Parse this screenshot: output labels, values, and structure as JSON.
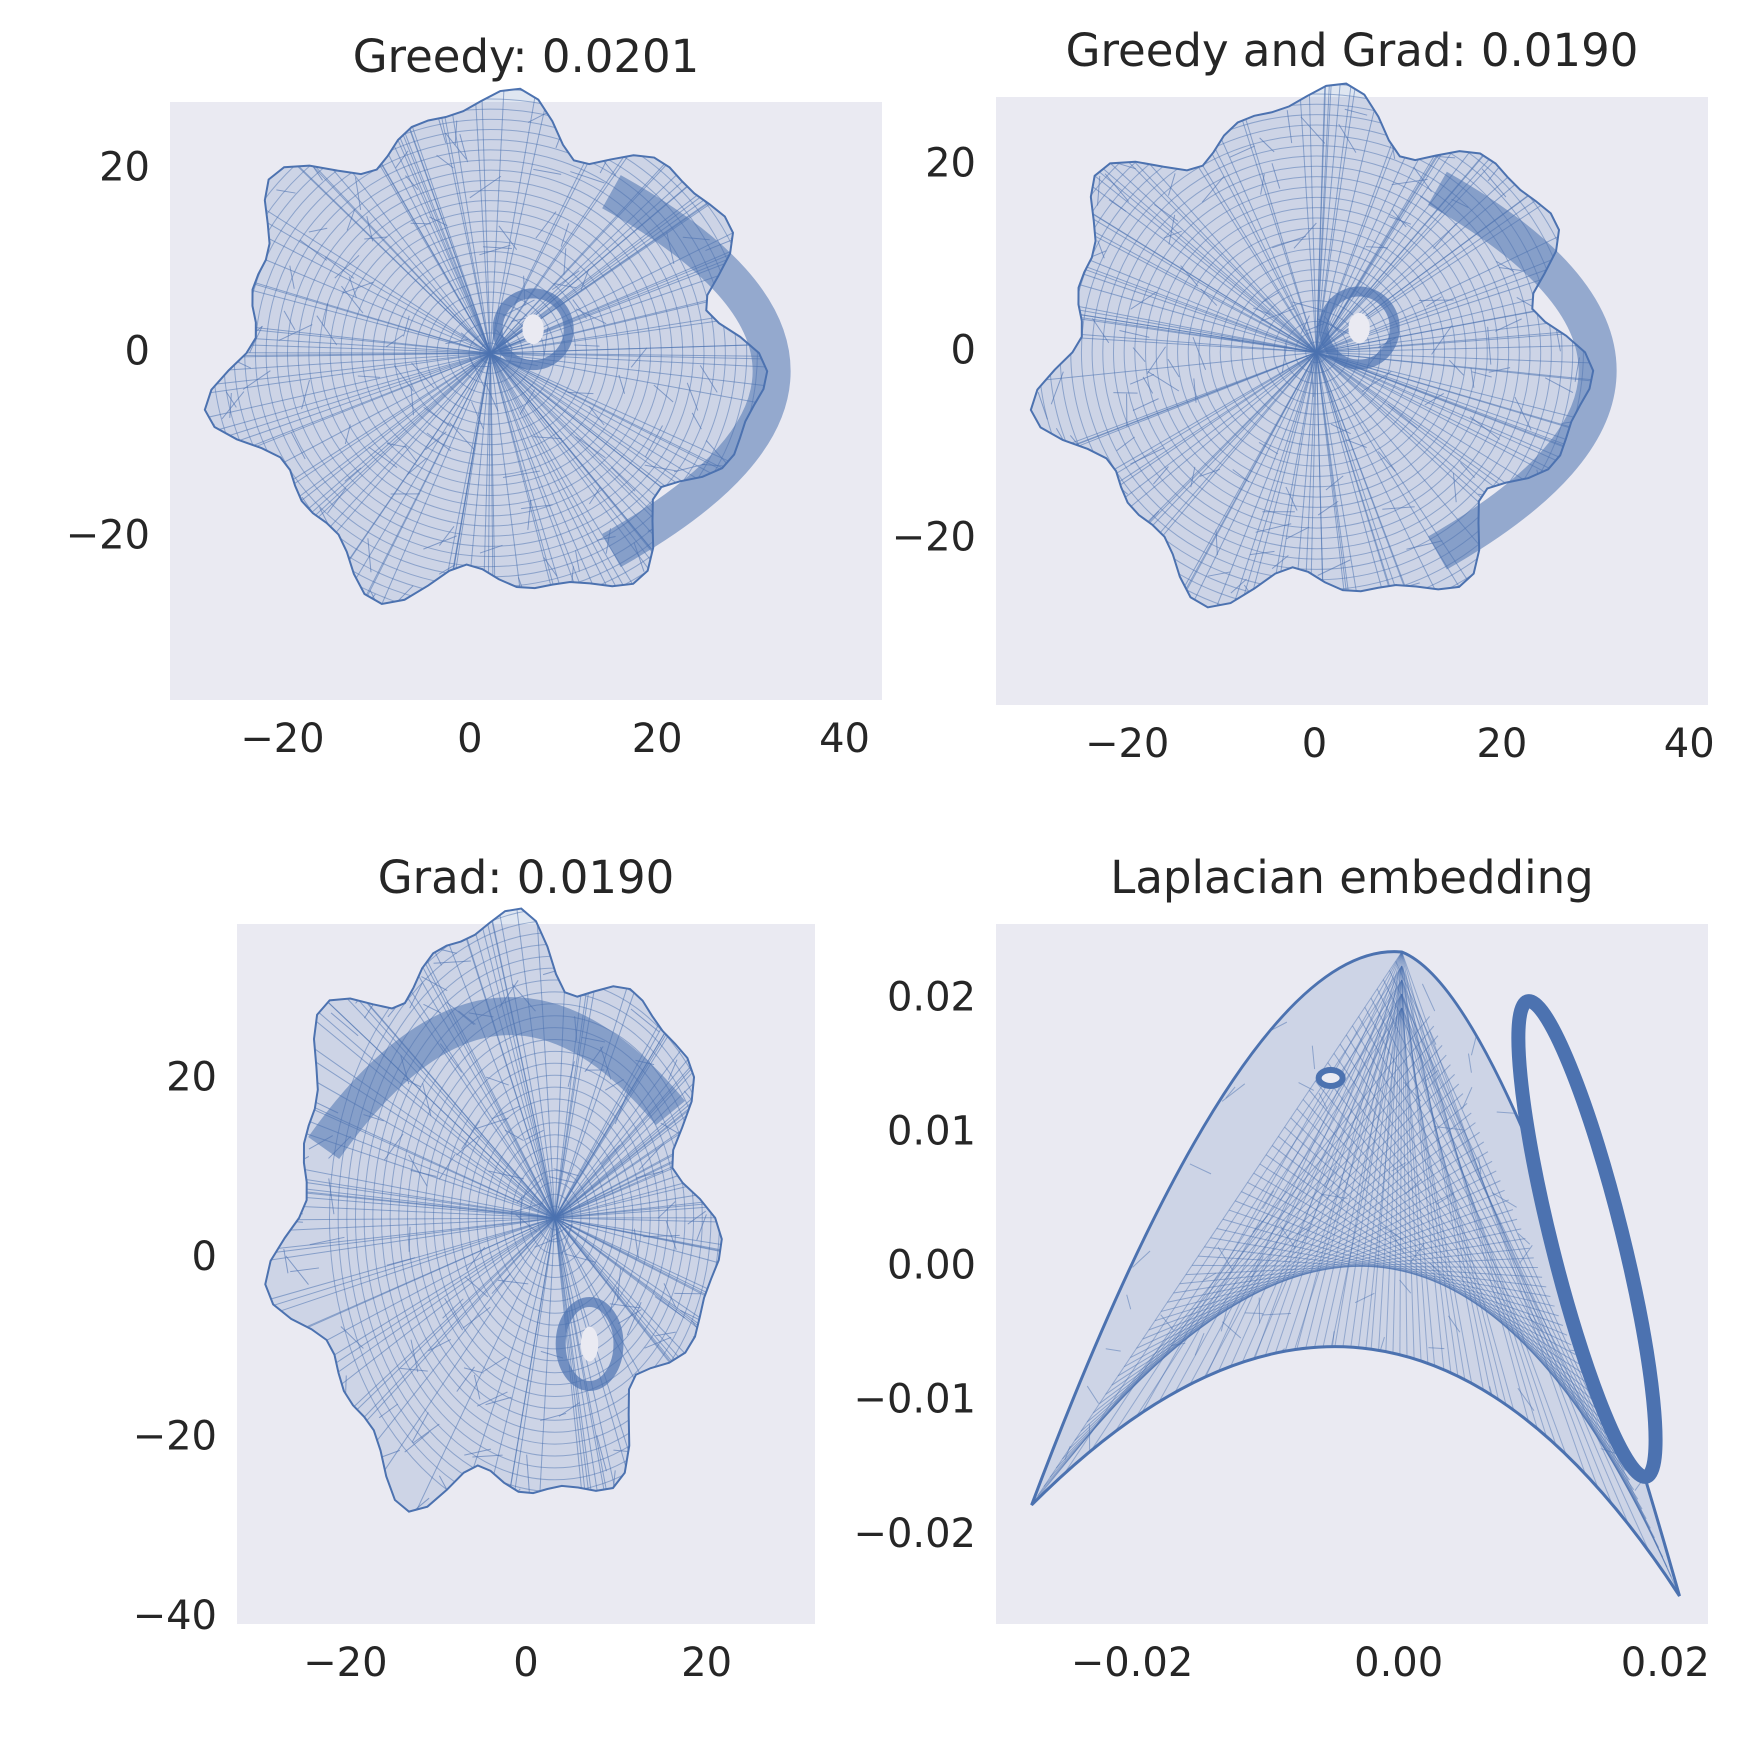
{
  "figure": {
    "background": "#ffffff",
    "panel_background": "#eaeaf2",
    "mesh_color": "#4c72b0"
  },
  "chart_data": [
    {
      "type": "mesh-embedding",
      "title": "Greedy: 0.0201",
      "xlim": [
        -32,
        44
      ],
      "ylim": [
        -38,
        27
      ],
      "xticks": [
        -20,
        0,
        20,
        40
      ],
      "xtick_labels": [
        "−20",
        "0",
        "20",
        "40"
      ],
      "yticks": [
        20,
        0,
        -20
      ],
      "ytick_labels": [
        "20",
        "0",
        "−20"
      ],
      "grid": false,
      "shape": "fan-with-arc",
      "mirrored": false
    },
    {
      "type": "mesh-embedding",
      "title": "Greedy and Grad: 0.0190",
      "xlim": [
        -34,
        42
      ],
      "ylim": [
        -38,
        27
      ],
      "xticks": [
        -20,
        0,
        20,
        40
      ],
      "xtick_labels": [
        "−20",
        "0",
        "20",
        "40"
      ],
      "yticks": [
        20,
        0,
        -20
      ],
      "ytick_labels": [
        "20",
        "0",
        "−20"
      ],
      "grid": false,
      "shape": "fan-with-arc",
      "mirrored": false
    },
    {
      "type": "mesh-embedding",
      "title": "Grad: 0.0190",
      "xlim": [
        -32,
        32
      ],
      "ylim": [
        -41,
        37
      ],
      "xticks": [
        -20,
        0,
        20
      ],
      "xtick_labels": [
        "−20",
        "0",
        "20"
      ],
      "yticks": [
        20,
        0,
        -20,
        -40
      ],
      "ytick_labels": [
        "20",
        "0",
        "−20",
        "−40"
      ],
      "grid": false,
      "shape": "fan-with-arc",
      "mirrored": true
    },
    {
      "type": "mesh-embedding",
      "title": "Laplacian embedding",
      "xlim": [
        -0.0302,
        0.0232
      ],
      "ylim": [
        -0.0268,
        0.0254
      ],
      "xticks": [
        -0.02,
        0.0,
        0.02
      ],
      "xtick_labels": [
        "−0.02",
        "0.00",
        "0.02"
      ],
      "yticks": [
        0.02,
        0.01,
        0.0,
        -0.01,
        -0.02
      ],
      "ytick_labels": [
        "0.02",
        "0.01",
        "0.00",
        "−0.01",
        "−0.02"
      ],
      "grid": false,
      "shape": "curved-triangle",
      "mirrored": false
    }
  ]
}
